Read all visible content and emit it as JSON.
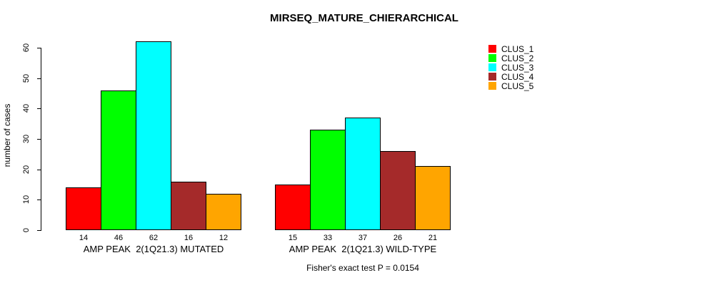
{
  "chart_data": {
    "type": "bar",
    "title": "MIRSEQ_MATURE_CHIERARCHICAL",
    "ylabel": "number of cases",
    "xlabel": "",
    "ylim": [
      0,
      60
    ],
    "y_ticks": [
      0,
      10,
      20,
      30,
      40,
      50,
      60
    ],
    "grid": false,
    "legend_position": "right",
    "groups": [
      {
        "label": "AMP PEAK  2(1Q21.3) MUTATED",
        "values": [
          14,
          46,
          62,
          16,
          12
        ]
      },
      {
        "label": "AMP PEAK  2(1Q21.3) WILD-TYPE",
        "values": [
          15,
          33,
          37,
          26,
          21
        ]
      }
    ],
    "series": [
      {
        "name": "CLUS_1",
        "color": "#FF0000"
      },
      {
        "name": "CLUS_2",
        "color": "#00FF00"
      },
      {
        "name": "CLUS_3",
        "color": "#00FFFF"
      },
      {
        "name": "CLUS_4",
        "color": "#A52A2A"
      },
      {
        "name": "CLUS_5",
        "color": "#FFA500"
      }
    ],
    "annotation": "Fisher's exact test P = 0.0154"
  }
}
